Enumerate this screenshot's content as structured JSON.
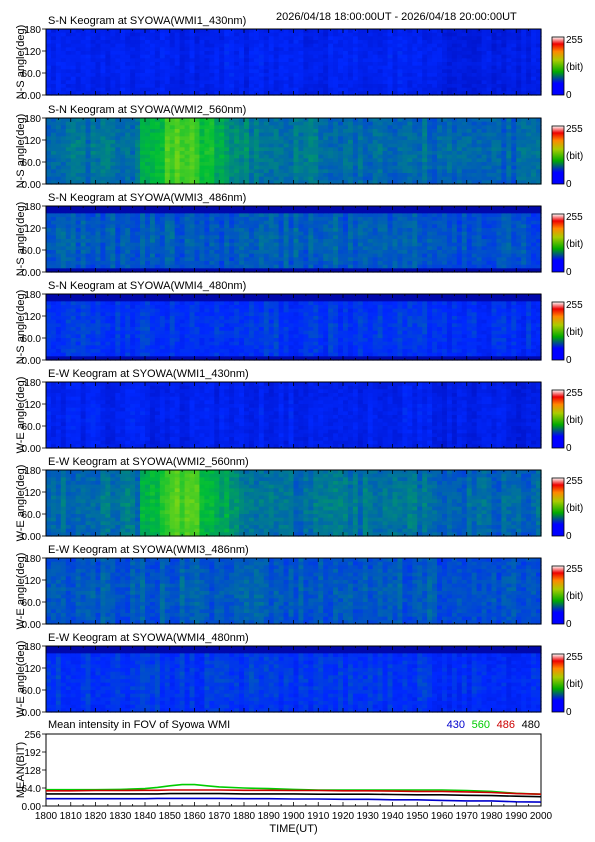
{
  "header": {
    "time_range": "2026/04/18 18:00:00UT - 2026/04/18 20:00:00UT"
  },
  "colorbar": {
    "max_label": "255",
    "unit_label": "(bit)",
    "min_label": "0"
  },
  "chart_data": [
    {
      "type": "heatmap",
      "title": "S-N Keogram at SYOWA(WMI1_430nm)",
      "ylabel": "N-S angle(deg)",
      "yticks": [
        "180",
        "120",
        "60.0",
        "0.00"
      ],
      "ylim": [
        0,
        180
      ],
      "xlim": [
        1800,
        2000
      ],
      "intensity": 0.22,
      "top_band": false,
      "gap_edges": false
    },
    {
      "type": "heatmap",
      "title": "S-N Keogram at SYOWA(WMI2_560nm)",
      "ylabel": "N-S angle(deg)",
      "yticks": [
        "180",
        "120",
        "60.0",
        "0.00"
      ],
      "ylim": [
        0,
        180
      ],
      "xlim": [
        1800,
        2000
      ],
      "intensity": 0.38,
      "top_band": false,
      "gap_edges": false,
      "bright_window": [
        1838,
        1900
      ],
      "bright_peak": 1855
    },
    {
      "type": "heatmap",
      "title": "S-N Keogram at SYOWA(WMI3_486nm)",
      "ylabel": "N-S angle(deg)",
      "yticks": [
        "180",
        "120",
        "60.0",
        "0.00"
      ],
      "ylim": [
        0,
        180
      ],
      "xlim": [
        1800,
        2000
      ],
      "intensity": 0.34,
      "top_band": true,
      "gap_edges": true
    },
    {
      "type": "heatmap",
      "title": "S-N Keogram at SYOWA(WMI4_480nm)",
      "ylabel": "N-S angle(deg)",
      "yticks": [
        "180",
        "120",
        "60.0",
        "0.00"
      ],
      "ylim": [
        0,
        180
      ],
      "xlim": [
        1800,
        2000
      ],
      "intensity": 0.28,
      "top_band": true,
      "gap_edges": true
    },
    {
      "type": "heatmap",
      "title": "E-W Keogram at SYOWA(WMI1_430nm)",
      "ylabel": "W-E angle(deg)",
      "yticks": [
        "180",
        "120",
        "60.0",
        "0.00"
      ],
      "ylim": [
        0,
        180
      ],
      "xlim": [
        1800,
        2000
      ],
      "intensity": 0.22,
      "top_band": false,
      "gap_edges": false
    },
    {
      "type": "heatmap",
      "title": "E-W Keogram at SYOWA(WMI2_560nm)",
      "ylabel": "W-E angle(deg)",
      "yticks": [
        "180",
        "120",
        "60.0",
        "0.00"
      ],
      "ylim": [
        0,
        180
      ],
      "xlim": [
        1800,
        2000
      ],
      "intensity": 0.38,
      "top_band": false,
      "gap_edges": false,
      "bright_window": [
        1838,
        1900
      ],
      "bright_peak": 1855
    },
    {
      "type": "heatmap",
      "title": "E-W Keogram at SYOWA(WMI3_486nm)",
      "ylabel": "W-E angle(deg)",
      "yticks": [
        "180",
        "120",
        "60.0",
        "0.00"
      ],
      "ylim": [
        0,
        180
      ],
      "xlim": [
        1800,
        2000
      ],
      "intensity": 0.34,
      "top_band": false,
      "gap_edges": false
    },
    {
      "type": "heatmap",
      "title": "E-W Keogram at SYOWA(WMI4_480nm)",
      "ylabel": "W-E angle(deg)",
      "yticks": [
        "180",
        "120",
        "60.0",
        "0.00"
      ],
      "ylim": [
        0,
        180
      ],
      "xlim": [
        1800,
        2000
      ],
      "intensity": 0.28,
      "top_band": true,
      "gap_edges": false
    },
    {
      "type": "line",
      "title": "Mean intensity in FOV of Syowa WMI",
      "ylabel": "MEAN(BIT)",
      "xlabel": "TIME(UT)",
      "yticks": [
        "256",
        "192",
        "128",
        "64.0",
        "0.00"
      ],
      "ylim": [
        0,
        256
      ],
      "xlim": [
        1800,
        2000
      ],
      "xticks": [
        "1800",
        "1810",
        "1820",
        "1830",
        "1840",
        "1850",
        "1860",
        "1870",
        "1880",
        "1890",
        "1900",
        "1910",
        "1920",
        "1930",
        "1940",
        "1950",
        "1960",
        "1970",
        "1980",
        "1990",
        "2000"
      ],
      "x": [
        1800,
        1810,
        1820,
        1830,
        1840,
        1845,
        1850,
        1855,
        1860,
        1865,
        1870,
        1880,
        1890,
        1900,
        1910,
        1920,
        1930,
        1940,
        1950,
        1960,
        1970,
        1980,
        1990,
        2000
      ],
      "series": [
        {
          "name": "430",
          "color": "#0000cc",
          "values": [
            26,
            26,
            26,
            26,
            26,
            27,
            27,
            27,
            27,
            27,
            27,
            26,
            26,
            25,
            25,
            24,
            24,
            22,
            22,
            20,
            18,
            18,
            15,
            14
          ]
        },
        {
          "name": "560",
          "color": "#00cc00",
          "values": [
            58,
            58,
            58,
            59,
            62,
            66,
            72,
            76,
            76,
            72,
            68,
            64,
            62,
            59,
            57,
            57,
            57,
            57,
            57,
            57,
            55,
            52,
            45,
            42
          ]
        },
        {
          "name": "486",
          "color": "#cc0000",
          "values": [
            54,
            54,
            55,
            55,
            56,
            56,
            57,
            57,
            57,
            57,
            57,
            56,
            56,
            55,
            55,
            54,
            54,
            53,
            52,
            52,
            50,
            48,
            44,
            42
          ]
        },
        {
          "name": "480",
          "color": "#000000",
          "values": [
            43,
            43,
            43,
            43,
            43,
            43,
            44,
            44,
            44,
            44,
            44,
            43,
            43,
            43,
            42,
            42,
            42,
            41,
            40,
            40,
            38,
            37,
            35,
            33
          ]
        }
      ]
    }
  ]
}
